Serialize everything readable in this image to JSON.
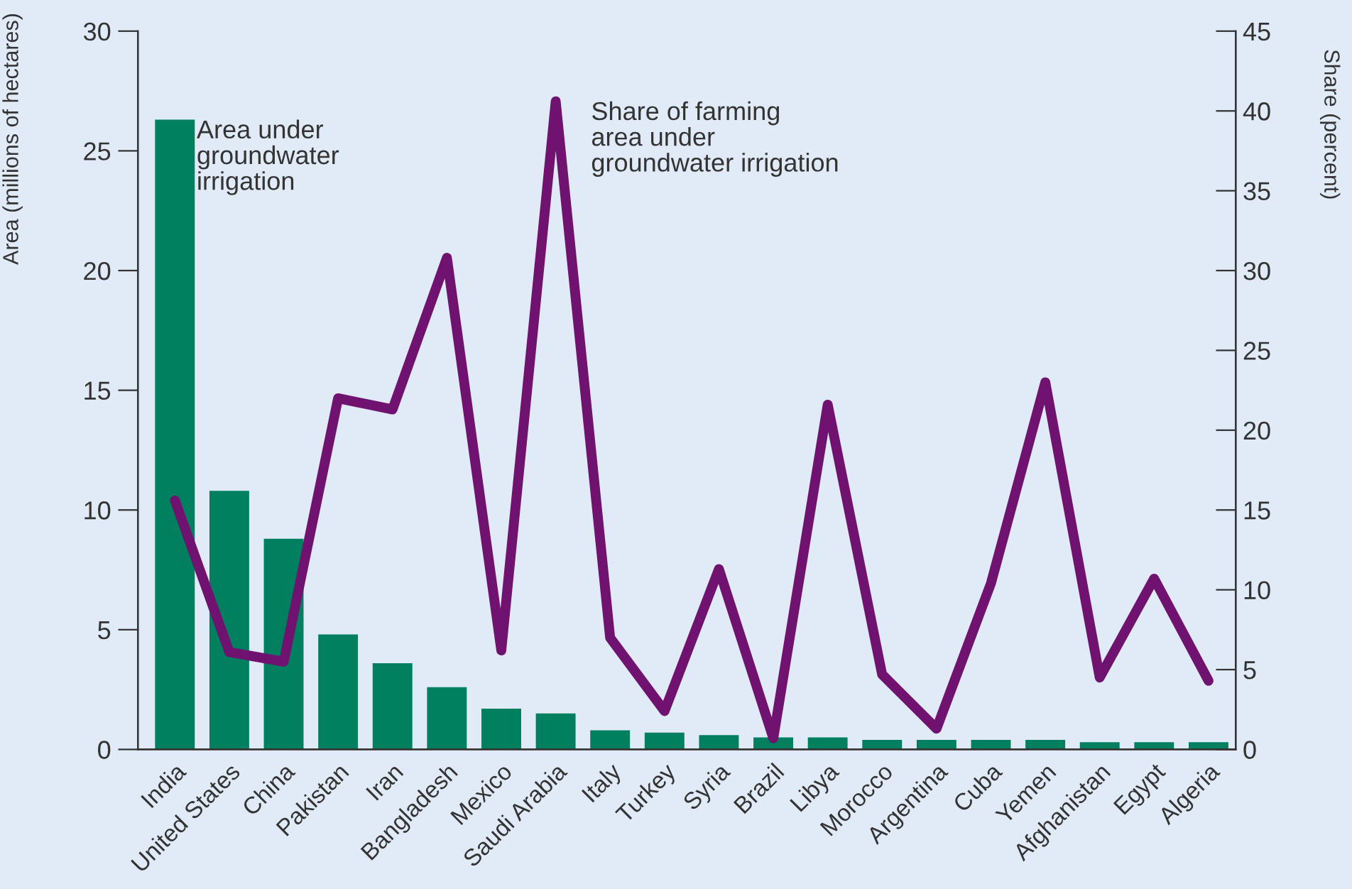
{
  "chart_data": {
    "type": "bar",
    "ylabel": "Area (millions of hectares)",
    "y2label": "Share (percent)",
    "categories": [
      "India",
      "United States",
      "China",
      "Pakistan",
      "Iran",
      "Bangladesh",
      "Mexico",
      "Saudi Arabia",
      "Italy",
      "Turkey",
      "Syria",
      "Brazil",
      "Libya",
      "Morocco",
      "Argentina",
      "Cuba",
      "Yemen",
      "Afghanistan",
      "Egypt",
      "Algeria"
    ],
    "series": [
      {
        "name": "Area under\ngroundwater\nirrigation",
        "color": "#00805f",
        "values": [
          26.3,
          10.8,
          8.8,
          4.8,
          3.6,
          2.6,
          1.7,
          1.5,
          0.8,
          0.7,
          0.6,
          0.5,
          0.5,
          0.4,
          0.4,
          0.4,
          0.4,
          0.3,
          0.3,
          0.3
        ]
      },
      {
        "name": "Share of farming\narea under\ngroundwater irrigation",
        "type": "line",
        "axis": "y2",
        "color": "#701270",
        "values": [
          15.6,
          6.1,
          5.5,
          22.0,
          21.3,
          30.8,
          6.2,
          40.6,
          7.0,
          2.4,
          11.3,
          0.7,
          21.6,
          4.7,
          1.3,
          10.4,
          23.0,
          4.5,
          10.7,
          4.3
        ]
      }
    ],
    "ylim": [
      0,
      30
    ],
    "yticks": [
      0,
      5,
      10,
      15,
      20,
      25,
      30
    ],
    "y2lim": [
      0,
      45
    ],
    "y2ticks": [
      0,
      5,
      10,
      15,
      20,
      25,
      30,
      35,
      40,
      45
    ],
    "grid": false,
    "legend": false
  }
}
